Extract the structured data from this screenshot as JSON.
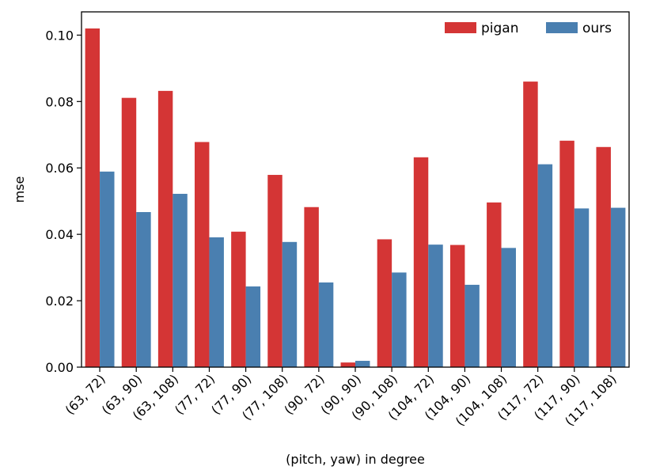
{
  "chart_data": {
    "type": "bar",
    "title": "",
    "xlabel": "(pitch, yaw) in degree",
    "ylabel": "mse",
    "categories": [
      "(63, 72)",
      "(63, 90)",
      "(63, 108)",
      "(77, 72)",
      "(77, 90)",
      "(77, 108)",
      "(90, 72)",
      "(90, 90)",
      "(90, 108)",
      "(104, 72)",
      "(104, 90)",
      "(104, 108)",
      "(117, 72)",
      "(117, 90)",
      "(117, 108)"
    ],
    "series": [
      {
        "name": "pigan",
        "color": "#d43535",
        "values": [
          0.102,
          0.0811,
          0.0832,
          0.0678,
          0.0408,
          0.0579,
          0.0482,
          0.0014,
          0.0385,
          0.0632,
          0.0368,
          0.0496,
          0.086,
          0.0682,
          0.0663
        ]
      },
      {
        "name": "ours",
        "color": "#4a7fb0",
        "values": [
          0.0589,
          0.0467,
          0.0522,
          0.0391,
          0.0243,
          0.0377,
          0.0255,
          0.0019,
          0.0285,
          0.0369,
          0.0248,
          0.0359,
          0.0611,
          0.0478,
          0.048
        ]
      }
    ],
    "ylim": [
      0,
      0.107
    ],
    "yticks": [
      "0.00",
      "0.02",
      "0.04",
      "0.06",
      "0.08",
      "0.10"
    ],
    "ytick_values": [
      0,
      0.02,
      0.04,
      0.06,
      0.08,
      0.1
    ],
    "grid": false,
    "legend": "top-right"
  }
}
